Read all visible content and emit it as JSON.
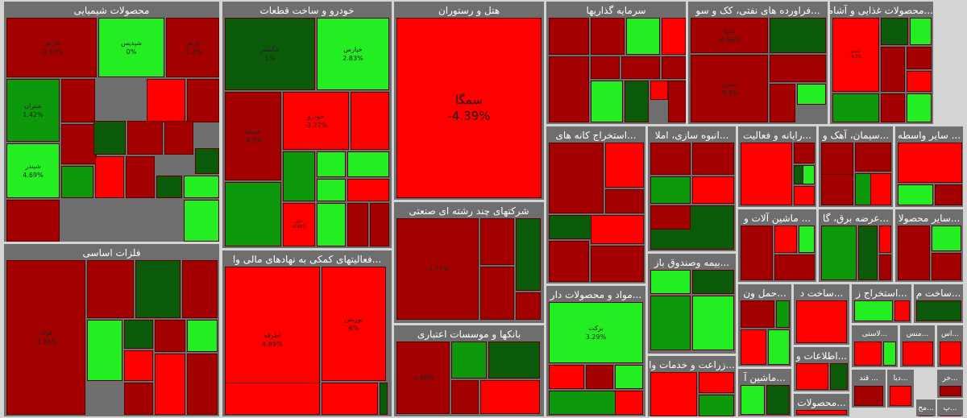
{
  "chart_data": {
    "type": "heatmap",
    "colors": {
      "dark_red": "#a30000",
      "red": "#ff0000",
      "bright_green": "#22ee22",
      "green": "#0c990c",
      "dark_green": "#0a5a0a",
      "panel": "#6e6e6e"
    },
    "sectors": [
      {
        "name": "محصولات شیمیایی",
        "tiles": [
          {
            "n": "فارس",
            "v": "-0.45%",
            "c": "dark_red"
          },
          {
            "n": "شپدیس",
            "v": "0%",
            "c": "bright_green"
          },
          {
            "n": "پارس",
            "v": "-1.3%",
            "c": "dark_red"
          },
          {
            "n": "شتران",
            "v": "1.42%",
            "c": "green"
          },
          {
            "n": "",
            "v": "",
            "c": "dark_red"
          },
          {
            "n": "",
            "v": "",
            "c": "red"
          },
          {
            "n": "",
            "v": "",
            "c": "dark_red"
          },
          {
            "n": "شبندر",
            "v": "4.69%",
            "c": "bright_green"
          },
          {
            "n": "",
            "v": "",
            "c": "dark_red"
          },
          {
            "n": "",
            "v": "",
            "c": "dark_green"
          },
          {
            "n": "",
            "v": "",
            "c": "dark_red"
          },
          {
            "n": "",
            "v": "",
            "c": "dark_red"
          },
          {
            "n": "",
            "v": "",
            "c": "dark_green"
          },
          {
            "n": "",
            "v": "",
            "c": "green"
          },
          {
            "n": "",
            "v": "",
            "c": "red"
          },
          {
            "n": "",
            "v": "",
            "c": "dark_red"
          },
          {
            "n": "",
            "v": "",
            "c": "dark_green"
          },
          {
            "n": "",
            "v": "",
            "c": "bright_green"
          },
          {
            "n": "",
            "v": "",
            "c": "bright_green"
          },
          {
            "n": "",
            "v": "",
            "c": "dark_red"
          }
        ]
      },
      {
        "name": "خودرو و ساخت قطعات",
        "tiles": [
          {
            "n": "خگستر",
            "v": "1%",
            "c": "dark_green"
          },
          {
            "n": "خپارس",
            "v": "2.83%",
            "c": "bright_green"
          },
          {
            "n": "خساپا",
            "v": "-4.5%",
            "c": "dark_red"
          },
          {
            "n": "خودرو",
            "v": "-3.27%",
            "c": "red"
          },
          {
            "n": "",
            "v": "",
            "c": "red"
          },
          {
            "n": "",
            "v": "",
            "c": "green"
          },
          {
            "n": "",
            "v": "",
            "c": "bright_green"
          },
          {
            "n": "",
            "v": "",
            "c": "bright_green"
          },
          {
            "n": "",
            "v": "",
            "c": "bright_green"
          },
          {
            "n": "خاور",
            "v": "-4.89%",
            "c": "red"
          },
          {
            "n": "",
            "v": "",
            "c": "bright_green"
          },
          {
            "n": "",
            "v": "",
            "c": "green"
          },
          {
            "n": "",
            "v": "",
            "c": "red"
          },
          {
            "n": "",
            "v": "",
            "c": "dark_red"
          },
          {
            "n": "",
            "v": "",
            "c": "dark_red"
          }
        ]
      },
      {
        "name": "هتل و رستوران",
        "tiles": [
          {
            "n": "سمگا",
            "v": "-4.39%",
            "c": "red"
          }
        ]
      },
      {
        "name": "سرمایه گذاریها",
        "tiles": [
          {
            "n": "",
            "v": "",
            "c": "dark_red"
          },
          {
            "n": "",
            "v": "",
            "c": "dark_red"
          },
          {
            "n": "",
            "v": "",
            "c": "bright_green"
          },
          {
            "n": "",
            "v": "",
            "c": "red"
          },
          {
            "n": "",
            "v": "",
            "c": "dark_red"
          },
          {
            "n": "",
            "v": "",
            "c": "dark_red"
          },
          {
            "n": "",
            "v": "",
            "c": "dark_red"
          },
          {
            "n": "",
            "v": "",
            "c": "dark_red"
          },
          {
            "n": "",
            "v": "",
            "c": "bright_green"
          },
          {
            "n": "",
            "v": "",
            "c": "dark_green"
          },
          {
            "n": "",
            "v": "",
            "c": "red"
          },
          {
            "n": "",
            "v": "",
            "c": "dark_red"
          }
        ]
      },
      {
        "name": "...فراورده های نفتی، کک و سو",
        "tiles": [
          {
            "n": "شپنا",
            "v": "-0.66%",
            "c": "dark_red"
          },
          {
            "n": "",
            "v": "",
            "c": "dark_green"
          },
          {
            "n": "",
            "v": "",
            "c": "dark_red"
          },
          {
            "n": "شبریز",
            "v": "-0.8%",
            "c": "dark_red"
          },
          {
            "n": "",
            "v": "",
            "c": "bright_green"
          },
          {
            "n": "",
            "v": "",
            "c": "dark_red"
          }
        ]
      },
      {
        "name": "...محصولات غذایی و آشامیدن",
        "tiles": [
          {
            "n": "غمینو",
            "v": "-4.7%",
            "c": "red"
          },
          {
            "n": "",
            "v": "",
            "c": "dark_green"
          },
          {
            "n": "",
            "v": "",
            "c": "bright_green"
          },
          {
            "n": "",
            "v": "",
            "c": "dark_red"
          },
          {
            "n": "",
            "v": "",
            "c": "green"
          },
          {
            "n": "",
            "v": "",
            "c": "dark_red"
          },
          {
            "n": "",
            "v": "",
            "c": "red"
          },
          {
            "n": "",
            "v": "",
            "c": "dark_red"
          },
          {
            "n": "",
            "v": "",
            "c": "bright_green"
          }
        ]
      },
      {
        "name": "...استخراج کانه های",
        "tiles": [
          {
            "n": "",
            "v": "",
            "c": "dark_red"
          },
          {
            "n": "",
            "v": "",
            "c": "red"
          },
          {
            "n": "",
            "v": "",
            "c": "dark_red"
          },
          {
            "n": "",
            "v": "",
            "c": "dark_green"
          },
          {
            "n": "",
            "v": "",
            "c": "dark_red"
          },
          {
            "n": "",
            "v": "",
            "c": "red"
          },
          {
            "n": "",
            "v": "",
            "c": "dark_red"
          }
        ]
      },
      {
        "name": "...انبوه سازی، املا",
        "tiles": [
          {
            "n": "",
            "v": "",
            "c": "dark_red"
          },
          {
            "n": "",
            "v": "",
            "c": "dark_red"
          },
          {
            "n": "",
            "v": "",
            "c": "green"
          },
          {
            "n": "",
            "v": "",
            "c": "red"
          },
          {
            "n": "",
            "v": "",
            "c": "dark_green"
          },
          {
            "n": "",
            "v": "",
            "c": "dark_red"
          }
        ]
      },
      {
        "name": "...رایانه و فعالیت",
        "tiles": [
          {
            "n": "",
            "v": "",
            "c": "red"
          },
          {
            "n": "",
            "v": "",
            "c": "dark_red"
          },
          {
            "n": "",
            "v": "",
            "c": "bright_green"
          },
          {
            "n": "",
            "v": "",
            "c": "dark_green"
          },
          {
            "n": "",
            "v": "",
            "c": "red"
          }
        ]
      },
      {
        "name": "...سیمان، آهک و",
        "tiles": [
          {
            "n": "",
            "v": "",
            "c": "dark_red"
          },
          {
            "n": "",
            "v": "",
            "c": "dark_red"
          },
          {
            "n": "",
            "v": "",
            "c": "red"
          },
          {
            "n": "",
            "v": "",
            "c": "dark_red"
          },
          {
            "n": "",
            "v": "",
            "c": "green"
          }
        ]
      },
      {
        "name": "... سایر واسطه",
        "tiles": [
          {
            "n": "",
            "v": "",
            "c": "red"
          },
          {
            "n": "",
            "v": "",
            "c": "bright_green"
          },
          {
            "n": "",
            "v": "",
            "c": "dark_red"
          }
        ]
      },
      {
        "name": "... ماشین آلات و",
        "tiles": [
          {
            "n": "",
            "v": "",
            "c": "dark_red"
          },
          {
            "n": "",
            "v": "",
            "c": "red"
          },
          {
            "n": "",
            "v": "",
            "c": "bright_green"
          },
          {
            "n": "",
            "v": "",
            "c": "dark_red"
          }
        ]
      },
      {
        "name": "...عرضه برق، گا",
        "tiles": [
          {
            "n": "",
            "v": "",
            "c": "green"
          },
          {
            "n": "",
            "v": "",
            "c": "dark_green"
          },
          {
            "n": "",
            "v": "",
            "c": "red"
          },
          {
            "n": "",
            "v": "",
            "c": "dark_red"
          }
        ]
      },
      {
        "name": "...سایر محصولا",
        "tiles": [
          {
            "n": "",
            "v": "",
            "c": "dark_red"
          },
          {
            "n": "",
            "v": "",
            "c": "bright_green"
          },
          {
            "n": "",
            "v": "",
            "c": "dark_red"
          }
        ]
      },
      {
        "name": "فلزات اساسی",
        "tiles": [
          {
            "n": "فولاد",
            "v": "-1.36%",
            "c": "dark_red"
          },
          {
            "n": "",
            "v": "",
            "c": "dark_red"
          },
          {
            "n": "",
            "v": "",
            "c": "dark_green"
          },
          {
            "n": "",
            "v": "",
            "c": "dark_red"
          },
          {
            "n": "",
            "v": "",
            "c": "bright_green"
          },
          {
            "n": "",
            "v": "",
            "c": "dark_green"
          },
          {
            "n": "",
            "v": "",
            "c": "red"
          },
          {
            "n": "",
            "v": "",
            "c": "dark_red"
          },
          {
            "n": "",
            "v": "",
            "c": "bright_green"
          },
          {
            "n": "",
            "v": "",
            "c": "dark_red"
          },
          {
            "n": "",
            "v": "",
            "c": "red"
          },
          {
            "n": "",
            "v": "",
            "c": "dark_red"
          }
        ]
      },
      {
        "name": "...فعالیتهای کمکی به نهادهای مالی وا",
        "tiles": [
          {
            "n": "اطرقه",
            "v": "4.89%",
            "c": "red"
          },
          {
            "n": "نوریس",
            "v": "6%",
            "c": "red"
          },
          {
            "n": "",
            "v": "",
            "c": "red"
          },
          {
            "n": "",
            "v": "",
            "c": "red"
          },
          {
            "n": "",
            "v": "",
            "c": "dark_green"
          }
        ]
      },
      {
        "name": "شرکتهای چند رشته ای صنعتی",
        "tiles": [
          {
            "n": "",
            "v": "-3.77%",
            "c": "dark_red"
          },
          {
            "n": "",
            "v": "",
            "c": "dark_red"
          },
          {
            "n": "",
            "v": "",
            "c": "dark_green"
          },
          {
            "n": "",
            "v": "",
            "c": "dark_red"
          },
          {
            "n": "",
            "v": "",
            "c": "dark_red"
          }
        ]
      },
      {
        "name": "بانکها و موسسات اعتباری",
        "tiles": [
          {
            "n": "",
            "v": "-1.68%",
            "c": "dark_red"
          },
          {
            "n": "",
            "v": "",
            "c": "green"
          },
          {
            "n": "",
            "v": "",
            "c": "dark_green"
          },
          {
            "n": "",
            "v": "",
            "c": "dark_red"
          },
          {
            "n": "",
            "v": "",
            "c": "red"
          }
        ]
      },
      {
        "name": "...مواد و محصولات دار",
        "tiles": [
          {
            "n": "برکت",
            "v": "3.29%",
            "c": "bright_green"
          },
          {
            "n": "",
            "v": "",
            "c": "red"
          },
          {
            "n": "",
            "v": "",
            "c": "dark_red"
          },
          {
            "n": "",
            "v": "",
            "c": "bright_green"
          },
          {
            "n": "",
            "v": "",
            "c": "green"
          },
          {
            "n": "",
            "v": "",
            "c": "red"
          }
        ]
      },
      {
        "name": "...بیمه وصندوق باز",
        "tiles": [
          {
            "n": "",
            "v": "",
            "c": "bright_green"
          },
          {
            "n": "",
            "v": "",
            "c": "dark_green"
          },
          {
            "n": "",
            "v": "",
            "c": "green"
          },
          {
            "n": "",
            "v": "",
            "c": "bright_green"
          },
          {
            "n": "",
            "v": "",
            "c": "bright_green"
          }
        ]
      },
      {
        "name": "...زراعت و خدمات وا",
        "tiles": [
          {
            "n": "",
            "v": "",
            "c": "red"
          },
          {
            "n": "",
            "v": "",
            "c": "red"
          },
          {
            "n": "",
            "v": "",
            "c": "green"
          }
        ]
      },
      {
        "name": "...حمل ون",
        "tiles": [
          {
            "n": "",
            "v": "",
            "c": "dark_red"
          },
          {
            "n": "",
            "v": "",
            "c": "green"
          },
          {
            "n": "",
            "v": "",
            "c": "red"
          },
          {
            "n": "",
            "v": "",
            "c": "bright_green"
          }
        ]
      },
      {
        "name": "...ساخت د",
        "tiles": [
          {
            "n": "",
            "v": "",
            "c": "red"
          }
        ]
      },
      {
        "name": "...استخراج ز",
        "tiles": [
          {
            "n": "",
            "v": "",
            "c": "bright_green"
          },
          {
            "n": "",
            "v": "",
            "c": "red"
          }
        ]
      },
      {
        "name": "...ساخت م",
        "tiles": [
          {
            "n": "",
            "v": "",
            "c": "dark_green"
          }
        ]
      },
      {
        "name": "...لاستی",
        "tiles": [
          {
            "n": "",
            "v": "",
            "c": "red"
          },
          {
            "n": "",
            "v": "",
            "c": "bright_green"
          }
        ]
      },
      {
        "name": "...منس",
        "tiles": [
          {
            "n": "",
            "v": "",
            "c": "red"
          }
        ]
      },
      {
        "name": "...اس",
        "tiles": [
          {
            "n": "",
            "v": "",
            "c": "red"
          }
        ]
      },
      {
        "name": "...اطلاعات و",
        "tiles": [
          {
            "n": "",
            "v": "",
            "c": "red"
          },
          {
            "n": "",
            "v": "",
            "c": "dark_green"
          }
        ]
      },
      {
        "name": "...ماشین آ",
        "tiles": [
          {
            "n": "",
            "v": "",
            "c": "bright_green"
          },
          {
            "n": "",
            "v": "",
            "c": "dark_green"
          }
        ]
      },
      {
        "name": "... قند",
        "tiles": [
          {
            "n": "",
            "v": "",
            "c": "dark_red"
          }
        ]
      },
      {
        "name": "...دیا",
        "tiles": [
          {
            "n": "",
            "v": "",
            "c": "red"
          }
        ]
      },
      {
        "name": "...خر",
        "tiles": [
          {
            "n": "",
            "v": "",
            "c": "dark_red"
          }
        ]
      },
      {
        "name": "...محصولات",
        "tiles": [
          {
            "n": "",
            "v": "",
            "c": "red"
          }
        ]
      },
      {
        "name": "...مح",
        "tiles": [
          {
            "n": "",
            "v": "",
            "c": "dark_red"
          }
        ]
      },
      {
        "name": "...پ",
        "tiles": [
          {
            "n": "",
            "v": "",
            "c": "dark_red"
          }
        ]
      }
    ]
  }
}
